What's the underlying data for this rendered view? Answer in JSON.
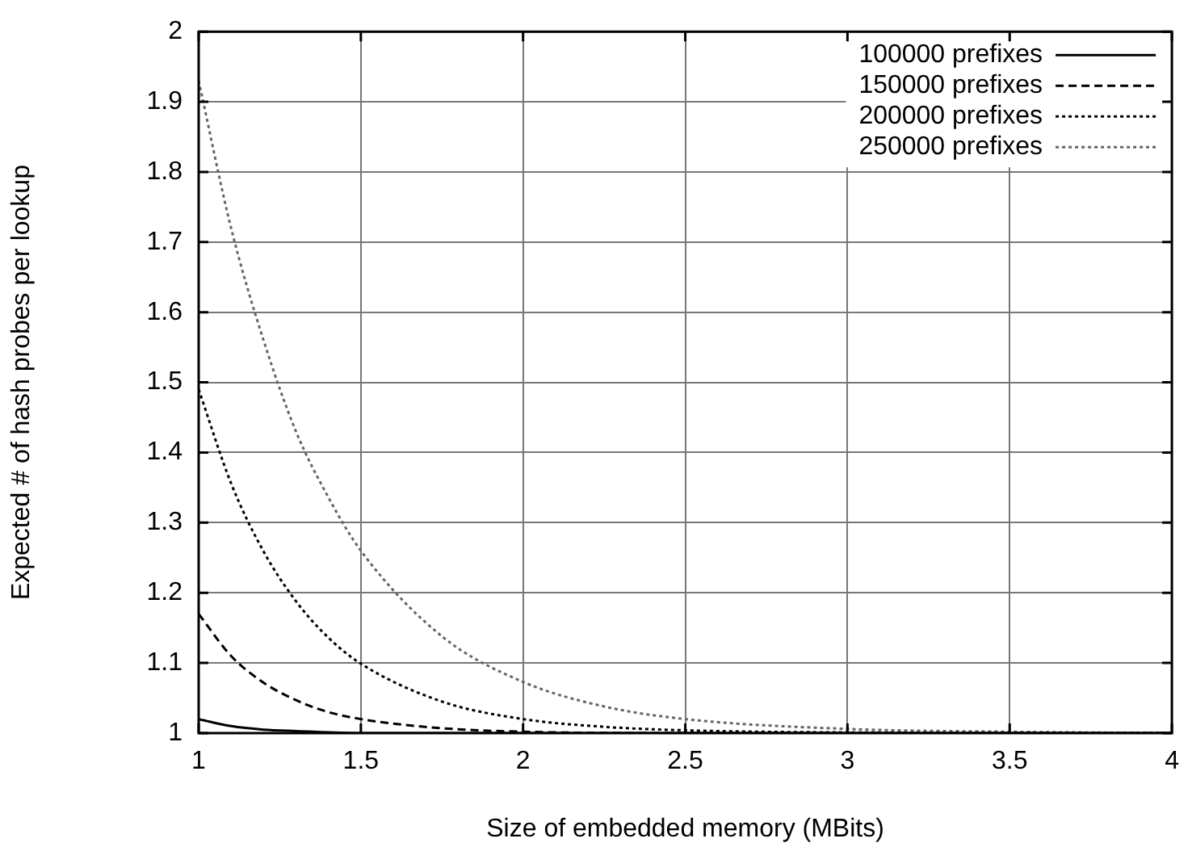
{
  "chart_data": {
    "type": "line",
    "xlabel": "Size of embedded memory (MBits)",
    "ylabel": "Expected # of hash probes per lookup",
    "xlim": [
      1,
      4
    ],
    "xticks": [
      1,
      1.5,
      2,
      2.5,
      3,
      3.5,
      4
    ],
    "ylim": [
      1,
      2
    ],
    "yticks": [
      1,
      1.1,
      1.2,
      1.3,
      1.4,
      1.5,
      1.6,
      1.7,
      1.8,
      1.9,
      2
    ],
    "grid": true,
    "legend": "top right",
    "marker": "none",
    "series": [
      {
        "name": "100000 prefixes",
        "color": "#000000",
        "line_style": "solid",
        "x": [
          1,
          1.1,
          1.2,
          1.3,
          1.5,
          2,
          3,
          4
        ],
        "values": [
          1.02,
          1.01,
          1.005,
          1.003,
          1.0,
          1.0,
          1.0,
          1.0
        ]
      },
      {
        "name": "150000 prefixes",
        "color": "#000000",
        "line_style": "dashed",
        "x": [
          1,
          1.1,
          1.2,
          1.3,
          1.4,
          1.5,
          1.75,
          2,
          2.5,
          3,
          4
        ],
        "values": [
          1.17,
          1.11,
          1.072,
          1.047,
          1.03,
          1.02,
          1.007,
          1.002,
          1.0,
          1.0,
          1.0
        ]
      },
      {
        "name": "200000 prefixes",
        "color": "#000000",
        "line_style": "dotted",
        "x": [
          1,
          1.1,
          1.2,
          1.3,
          1.4,
          1.5,
          1.75,
          2,
          2.25,
          2.5,
          3,
          4
        ],
        "values": [
          1.49,
          1.356,
          1.259,
          1.188,
          1.136,
          1.099,
          1.045,
          1.02,
          1.009,
          1.004,
          1.001,
          1.0
        ]
      },
      {
        "name": "250000 prefixes",
        "color": "#666666",
        "line_style": "dotted",
        "x": [
          1,
          1.1,
          1.2,
          1.3,
          1.4,
          1.5,
          1.75,
          2,
          2.25,
          2.5,
          3,
          3.5,
          4
        ],
        "values": [
          1.93,
          1.72,
          1.56,
          1.43,
          1.336,
          1.26,
          1.138,
          1.073,
          1.038,
          1.02,
          1.006,
          1.002,
          1.0
        ]
      }
    ]
  }
}
